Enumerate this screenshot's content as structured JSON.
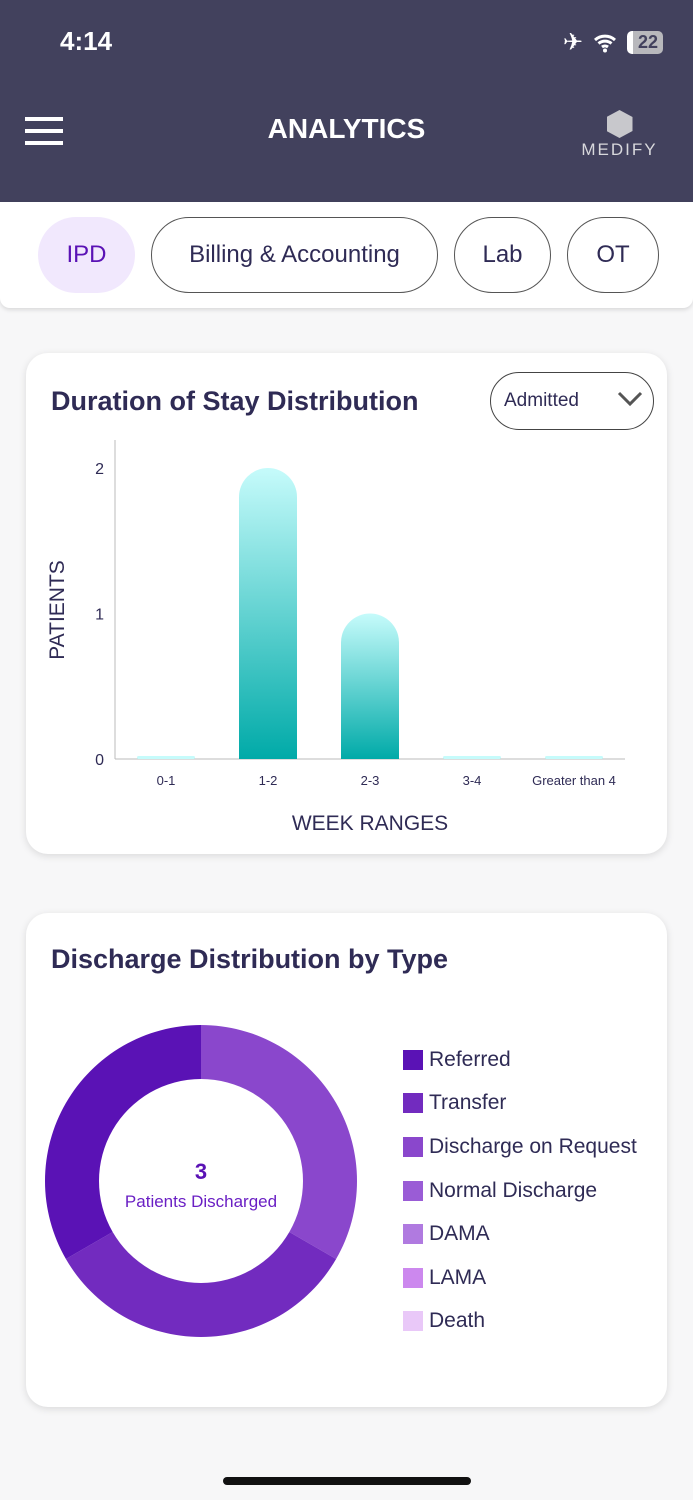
{
  "status": {
    "time": "4:14",
    "battery": "22"
  },
  "header": {
    "title": "ANALYTICS",
    "logo_text": "MEDIFY"
  },
  "tabs": [
    {
      "label": "IPD",
      "active": true
    },
    {
      "label": "Billing & Accounting"
    },
    {
      "label": "Lab"
    },
    {
      "label": "OT"
    }
  ],
  "chart_data": [
    {
      "type": "bar",
      "title": "Duration of Stay Distribution",
      "filter": "Admitted",
      "xlabel": "WEEK RANGES",
      "ylabel": "PATIENTS",
      "categories": [
        "0-1",
        "1-2",
        "2-3",
        "3-4",
        "Greater than 4"
      ],
      "values": [
        0,
        2,
        1,
        0,
        0
      ],
      "ylim": [
        0,
        2
      ],
      "yticks": [
        "0",
        "1",
        "2"
      ],
      "bar_colors": [
        "#00aaa8",
        "#c6fbfb"
      ]
    },
    {
      "type": "pie",
      "title": "Discharge Distribution by Type",
      "center_value": "3",
      "center_label": "Patients Discharged",
      "legend_position": "right",
      "slices": [
        {
          "label": "Referred",
          "value": 1,
          "color": "#5a12b5"
        },
        {
          "label": "Transfer",
          "value": 1,
          "color": "#722bbf"
        },
        {
          "label": "Discharge on Request",
          "value": 1,
          "color": "#8a47cc"
        },
        {
          "label": "Normal Discharge",
          "value": 0,
          "color": "#9a5cd6"
        },
        {
          "label": "DAMA",
          "value": 0,
          "color": "#b07ae0"
        },
        {
          "label": "LAMA",
          "value": 0,
          "color": "#cc88ee"
        },
        {
          "label": "Death",
          "value": 0,
          "color": "#e9c8f8"
        }
      ]
    }
  ]
}
